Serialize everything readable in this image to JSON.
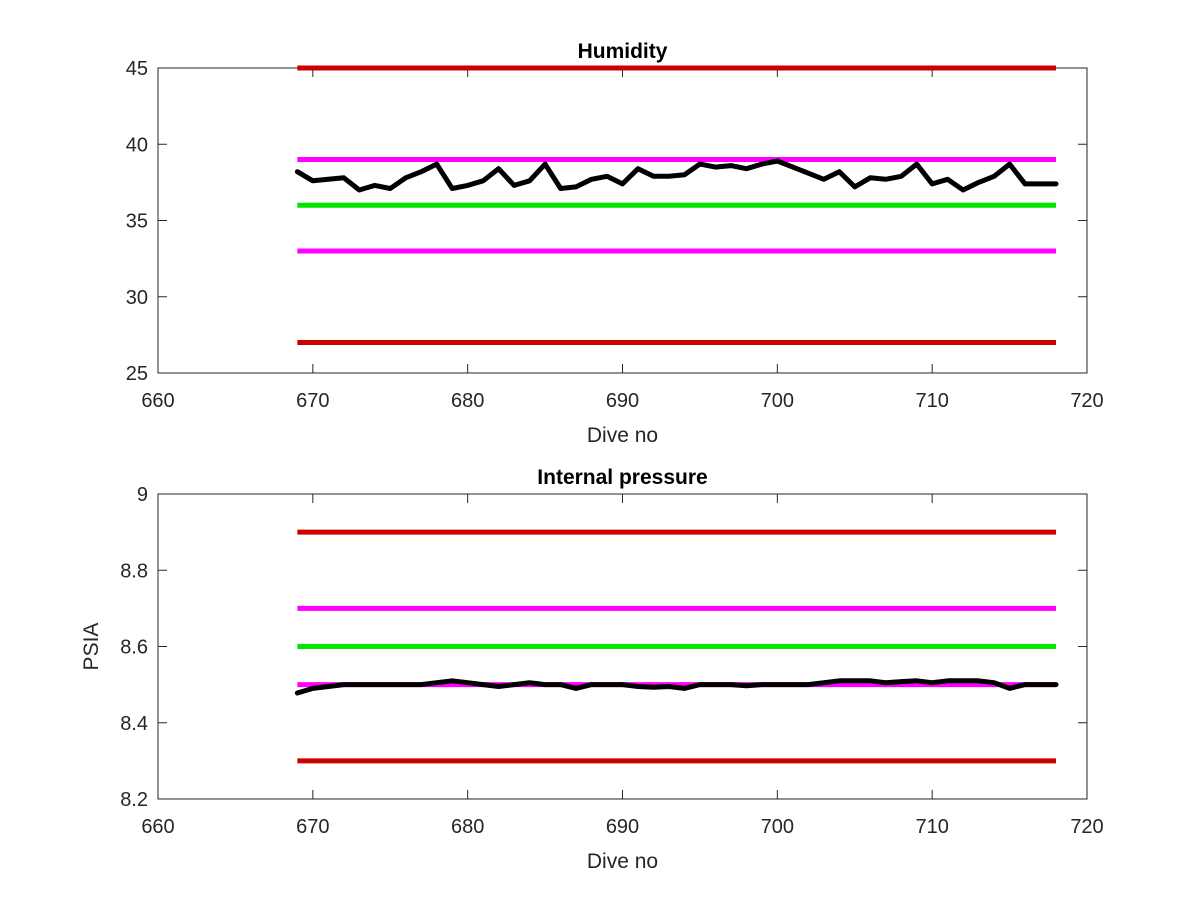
{
  "chart_data": [
    {
      "type": "line",
      "title": "Humidity",
      "xlabel": "Dive no",
      "ylabel": "",
      "xlim": [
        660,
        720
      ],
      "ylim": [
        25,
        45
      ],
      "xticks": [
        "660",
        "670",
        "680",
        "690",
        "700",
        "710",
        "720"
      ],
      "yticks": [
        "25",
        "30",
        "35",
        "40",
        "45"
      ],
      "grid": false,
      "reference_lines": [
        {
          "y": 45,
          "x_range": [
            669,
            718
          ],
          "color": "#cc0000"
        },
        {
          "y": 39,
          "x_range": [
            669,
            718
          ],
          "color": "#ff00ff"
        },
        {
          "y": 36,
          "x_range": [
            669,
            718
          ],
          "color": "#00e600"
        },
        {
          "y": 33,
          "x_range": [
            669,
            718
          ],
          "color": "#ff00ff"
        },
        {
          "y": 27,
          "x_range": [
            669,
            718
          ],
          "color": "#cc0000"
        }
      ],
      "series": [
        {
          "color": "#000000",
          "x": [
            669,
            670,
            671,
            672,
            673,
            674,
            675,
            676,
            677,
            678,
            679,
            680,
            681,
            682,
            683,
            684,
            685,
            686,
            687,
            688,
            689,
            690,
            691,
            692,
            693,
            694,
            695,
            696,
            697,
            698,
            699,
            700,
            701,
            702,
            703,
            704,
            705,
            706,
            707,
            708,
            709,
            710,
            711,
            712,
            713,
            714,
            715,
            716,
            717,
            718
          ],
          "values": [
            38.2,
            37.6,
            37.7,
            37.8,
            37.0,
            37.3,
            37.1,
            37.8,
            38.2,
            38.7,
            37.1,
            37.3,
            37.6,
            38.4,
            37.3,
            37.6,
            38.7,
            37.1,
            37.2,
            37.7,
            37.9,
            37.4,
            38.4,
            37.9,
            37.9,
            38.0,
            38.7,
            38.5,
            38.6,
            38.4,
            38.7,
            38.9,
            38.5,
            38.1,
            37.7,
            38.2,
            37.2,
            37.8,
            37.7,
            37.9,
            38.7,
            37.4,
            37.7,
            37.0,
            37.5,
            37.9,
            38.7,
            37.4,
            37.4,
            37.4
          ]
        }
      ]
    },
    {
      "type": "line",
      "title": "Internal pressure",
      "xlabel": "Dive no",
      "ylabel": "PSIA",
      "xlim": [
        660,
        720
      ],
      "ylim": [
        8.2,
        9
      ],
      "xticks": [
        "660",
        "670",
        "680",
        "690",
        "700",
        "710",
        "720"
      ],
      "yticks": [
        "8.2",
        "8.4",
        "8.6",
        "8.8",
        "9"
      ],
      "grid": false,
      "reference_lines": [
        {
          "y": 8.9,
          "x_range": [
            669,
            718
          ],
          "color": "#cc0000"
        },
        {
          "y": 8.7,
          "x_range": [
            669,
            718
          ],
          "color": "#ff00ff"
        },
        {
          "y": 8.6,
          "x_range": [
            669,
            718
          ],
          "color": "#00e600"
        },
        {
          "y": 8.5,
          "x_range": [
            669,
            718
          ],
          "color": "#ff00ff"
        },
        {
          "y": 8.3,
          "x_range": [
            669,
            718
          ],
          "color": "#cc0000"
        }
      ],
      "series": [
        {
          "color": "#000000",
          "x": [
            669,
            670,
            671,
            672,
            673,
            674,
            675,
            676,
            677,
            678,
            679,
            680,
            681,
            682,
            683,
            684,
            685,
            686,
            687,
            688,
            689,
            690,
            691,
            692,
            693,
            694,
            695,
            696,
            697,
            698,
            699,
            700,
            701,
            702,
            703,
            704,
            705,
            706,
            707,
            708,
            709,
            710,
            711,
            712,
            713,
            714,
            715,
            716,
            717,
            718
          ],
          "values": [
            8.478,
            8.49,
            8.495,
            8.5,
            8.5,
            8.5,
            8.5,
            8.5,
            8.5,
            8.505,
            8.51,
            8.505,
            8.5,
            8.495,
            8.5,
            8.505,
            8.5,
            8.5,
            8.49,
            8.5,
            8.5,
            8.5,
            8.495,
            8.493,
            8.495,
            8.49,
            8.5,
            8.5,
            8.5,
            8.497,
            8.5,
            8.5,
            8.5,
            8.5,
            8.505,
            8.51,
            8.51,
            8.51,
            8.505,
            8.508,
            8.51,
            8.505,
            8.51,
            8.51,
            8.51,
            8.505,
            8.49,
            8.5,
            8.5,
            8.5
          ]
        }
      ]
    }
  ]
}
